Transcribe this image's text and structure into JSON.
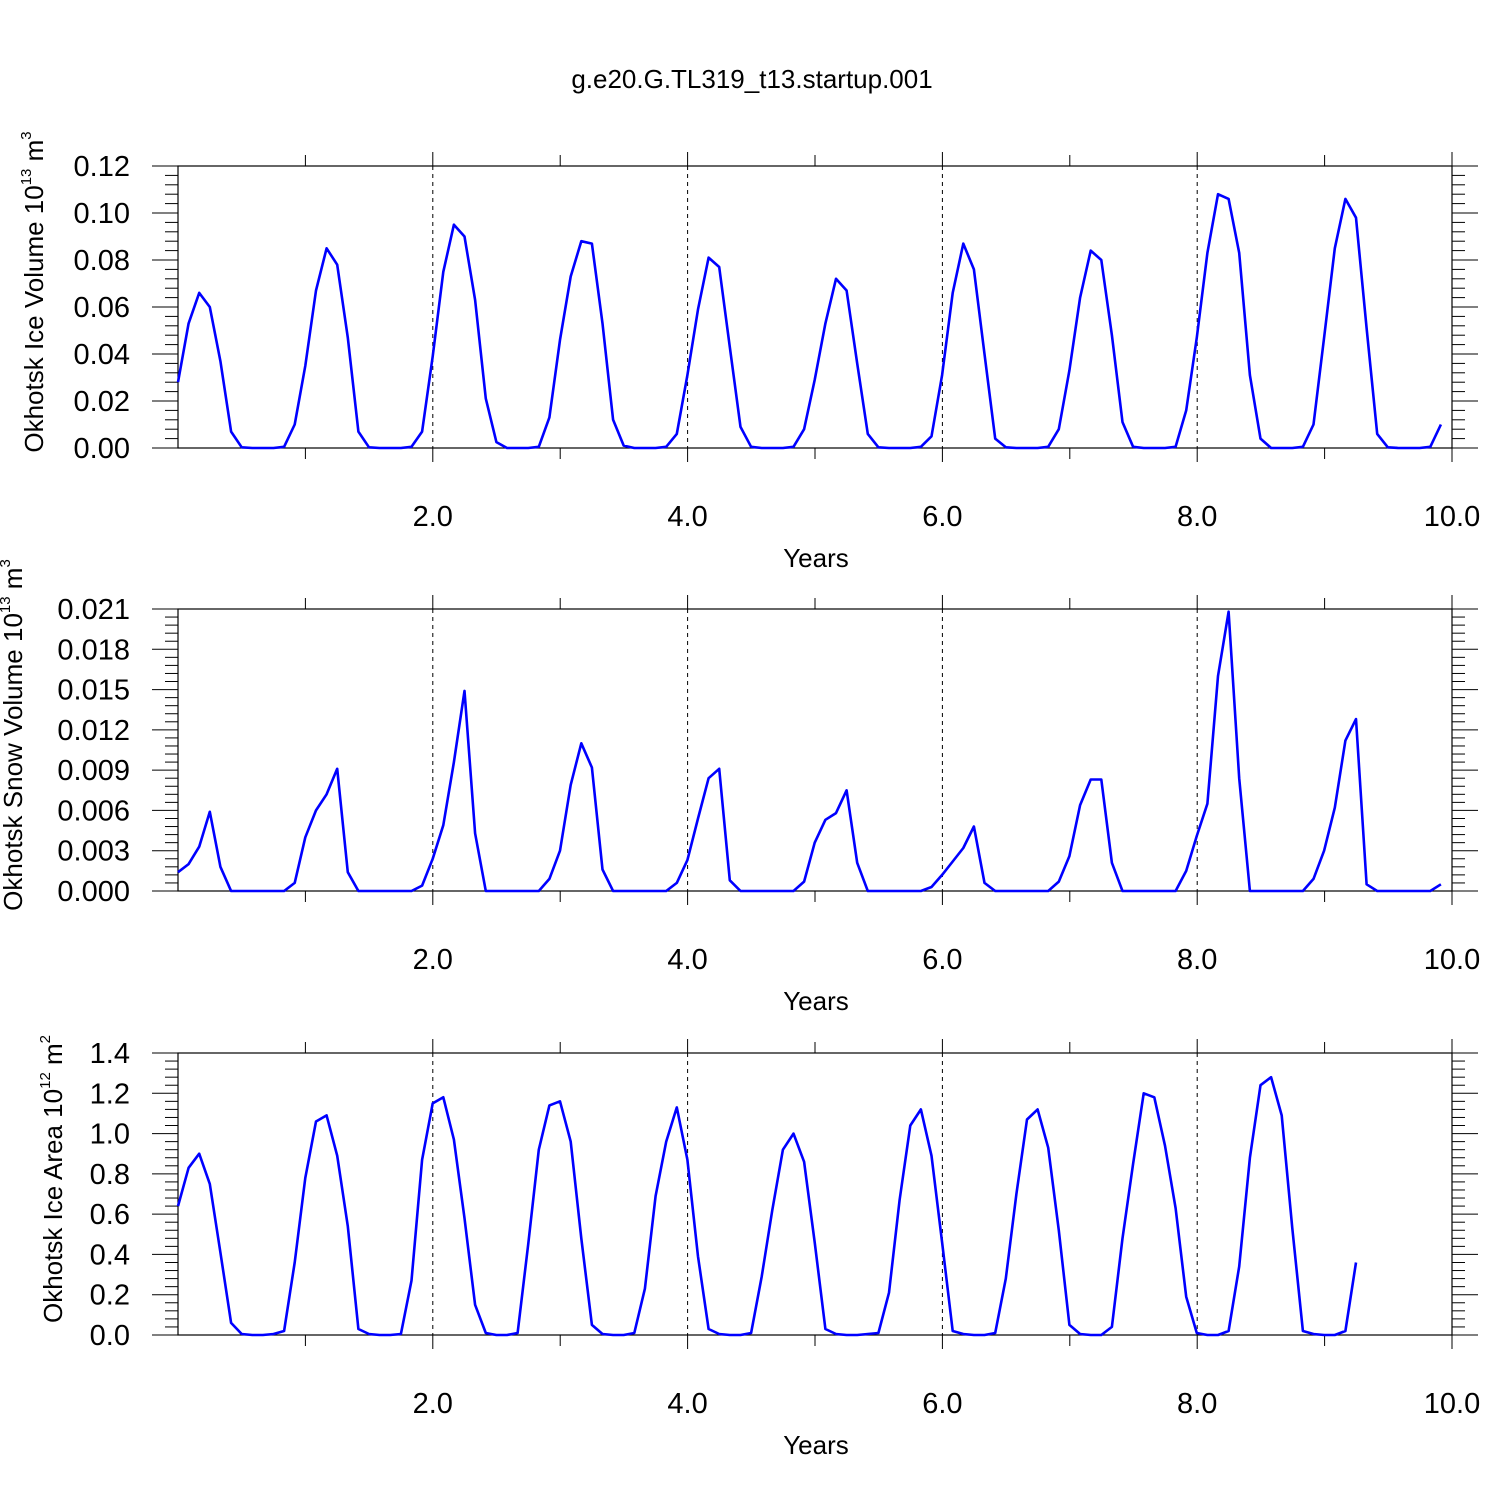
{
  "title": "g.e20.G.TL319_t13.startup.001",
  "colors": {
    "series": "#0000ff",
    "axes": "#000000",
    "grid": "#000000"
  },
  "chart_data": [
    {
      "type": "line",
      "xlabel": "Years",
      "ylabel": {
        "text": "Okhotsk Ice Volume 10",
        "sup": "13",
        "unit": " m",
        "unit_sup": "3"
      },
      "xlim": [
        0.0,
        10.0
      ],
      "ylim": [
        0.0,
        0.12
      ],
      "x_ticks": [
        "2.0",
        "4.0",
        "6.0",
        "8.0",
        "10.0"
      ],
      "y_ticks": [
        "0.00",
        "0.02",
        "0.04",
        "0.06",
        "0.08",
        "0.10",
        "0.12"
      ],
      "dashed_grid_x": [
        2.0,
        4.0,
        6.0,
        8.0
      ],
      "series": [
        {
          "x_start": 0.0,
          "x_step": 0.0833,
          "values": [
            0.028,
            0.053,
            0.066,
            0.06,
            0.037,
            0.007,
            0.0003,
            0,
            0,
            0,
            0.0005,
            0.01,
            0.035,
            0.067,
            0.085,
            0.078,
            0.047,
            0.007,
            0.0003,
            0,
            0,
            0,
            0.0005,
            0.007,
            0.039,
            0.075,
            0.095,
            0.09,
            0.063,
            0.021,
            0.0025,
            0,
            0,
            0,
            0.0005,
            0.013,
            0.046,
            0.073,
            0.088,
            0.087,
            0.053,
            0.012,
            0.001,
            0,
            0,
            0,
            0.0005,
            0.006,
            0.031,
            0.059,
            0.081,
            0.077,
            0.043,
            0.009,
            0.0005,
            0,
            0,
            0,
            0.0005,
            0.008,
            0.029,
            0.053,
            0.072,
            0.067,
            0.036,
            0.006,
            0.0003,
            0,
            0,
            0,
            0.0005,
            0.005,
            0.031,
            0.066,
            0.087,
            0.076,
            0.04,
            0.004,
            0.0003,
            0,
            0,
            0,
            0.0005,
            0.008,
            0.033,
            0.064,
            0.084,
            0.08,
            0.048,
            0.011,
            0.0005,
            0,
            0,
            0,
            0.0005,
            0.016,
            0.047,
            0.083,
            0.108,
            0.106,
            0.083,
            0.031,
            0.004,
            0,
            0,
            0,
            0.0005,
            0.01,
            0.047,
            0.085,
            0.106,
            0.098,
            0.051,
            0.006,
            0.0003,
            0,
            0,
            0,
            0.0005,
            0.01
          ]
        }
      ]
    },
    {
      "type": "line",
      "xlabel": "Years",
      "ylabel": {
        "text": "Okhotsk Snow Volume 10",
        "sup": "13",
        "unit": " m",
        "unit_sup": "3"
      },
      "xlim": [
        0.0,
        10.0
      ],
      "ylim": [
        0.0,
        0.021
      ],
      "x_ticks": [
        "2.0",
        "4.0",
        "6.0",
        "8.0",
        "10.0"
      ],
      "y_ticks": [
        "0.000",
        "0.003",
        "0.006",
        "0.009",
        "0.012",
        "0.015",
        "0.018",
        "0.021"
      ],
      "dashed_grid_x": [
        2.0,
        4.0,
        6.0,
        8.0
      ],
      "series": [
        {
          "x_start": 0.0,
          "x_step": 0.0833,
          "values": [
            0.0014,
            0.002,
            0.0033,
            0.0059,
            0.0018,
            0,
            0,
            0,
            0,
            0,
            0,
            0.0006,
            0.004,
            0.006,
            0.0072,
            0.0091,
            0.0014,
            0,
            0,
            0,
            0,
            0,
            0,
            0.0004,
            0.0024,
            0.0049,
            0.0096,
            0.0149,
            0.0043,
            0,
            0,
            0,
            0,
            0,
            0,
            0.0009,
            0.003,
            0.0079,
            0.011,
            0.0092,
            0.0016,
            0,
            0,
            0,
            0,
            0,
            0,
            0.0006,
            0.0023,
            0.0054,
            0.0084,
            0.0091,
            0.0008,
            0,
            0,
            0,
            0,
            0,
            0,
            0.0007,
            0.0036,
            0.0053,
            0.0058,
            0.0075,
            0.0021,
            0,
            0,
            0,
            0,
            0,
            0,
            0.0003,
            0.0012,
            0.0022,
            0.0032,
            0.0048,
            0.0006,
            0,
            0,
            0,
            0,
            0,
            0,
            0.0007,
            0.0026,
            0.0064,
            0.0083,
            0.0083,
            0.0021,
            0,
            0,
            0,
            0,
            0,
            0,
            0.0015,
            0.0041,
            0.0065,
            0.016,
            0.0208,
            0.0084,
            0,
            0,
            0,
            0,
            0,
            0,
            0.0009,
            0.003,
            0.0062,
            0.0112,
            0.0128,
            0.0005,
            0,
            0,
            0,
            0,
            0,
            0,
            0.0005
          ]
        }
      ]
    },
    {
      "type": "line",
      "xlabel": "Years",
      "ylabel": {
        "text": "Okhotsk Ice Area 10",
        "sup": "12",
        "unit": " m",
        "unit_sup": "2"
      },
      "xlim": [
        0.0,
        10.0
      ],
      "ylim": [
        0.0,
        1.4
      ],
      "x_ticks": [
        "2.0",
        "4.0",
        "6.0",
        "8.0",
        "10.0"
      ],
      "y_ticks": [
        "0.0",
        "0.2",
        "0.4",
        "0.6",
        "0.8",
        "1.0",
        "1.2",
        "1.4"
      ],
      "dashed_grid_x": [
        2.0,
        4.0,
        6.0,
        8.0
      ],
      "series": [
        {
          "x_start": 0.0,
          "x_step": 0.0833,
          "values": [
            0.64,
            0.83,
            0.9,
            0.75,
            0.41,
            0.06,
            0.005,
            0,
            0,
            0.005,
            0.02,
            0.36,
            0.78,
            1.06,
            1.09,
            0.89,
            0.54,
            0.03,
            0.005,
            0,
            0,
            0.005,
            0.27,
            0.87,
            1.15,
            1.18,
            0.97,
            0.58,
            0.15,
            0.01,
            0,
            0,
            0.01,
            0.45,
            0.92,
            1.14,
            1.16,
            0.96,
            0.48,
            0.05,
            0.005,
            0,
            0,
            0.01,
            0.23,
            0.69,
            0.96,
            1.13,
            0.87,
            0.39,
            0.03,
            0.005,
            0,
            0,
            0.01,
            0.29,
            0.62,
            0.92,
            1.0,
            0.86,
            0.46,
            0.03,
            0.005,
            0,
            0,
            0.005,
            0.01,
            0.21,
            0.67,
            1.04,
            1.12,
            0.89,
            0.46,
            0.02,
            0.005,
            0,
            0,
            0.01,
            0.28,
            0.7,
            1.07,
            1.12,
            0.93,
            0.52,
            0.05,
            0.005,
            0,
            0,
            0.04,
            0.48,
            0.85,
            1.2,
            1.18,
            0.94,
            0.63,
            0.19,
            0.01,
            0,
            0,
            0.02,
            0.34,
            0.88,
            1.24,
            1.28,
            1.09,
            0.53,
            0.02,
            0.005,
            0,
            0,
            0.02,
            0.36
          ]
        }
      ]
    }
  ]
}
